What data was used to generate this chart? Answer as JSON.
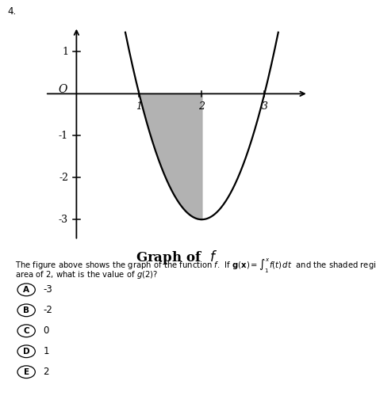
{
  "title": "Graph of  $f$",
  "question_number": "4.",
  "choices": [
    [
      "A",
      "-3"
    ],
    [
      "B",
      "-2"
    ],
    [
      "C",
      "0"
    ],
    [
      "D",
      "1"
    ],
    [
      "E",
      "2"
    ]
  ],
  "curve_color": "#000000",
  "shade_color": "#aaaaaa",
  "background_color": "#ffffff",
  "x_ticks": [
    1,
    2,
    3
  ],
  "y_ticks": [
    1,
    -1,
    -2,
    -3
  ],
  "origin_label": "O",
  "xlim": [
    -0.5,
    3.7
  ],
  "ylim": [
    -3.5,
    1.6
  ],
  "parabola_a": 3.0,
  "parabola_roots": [
    1.0,
    3.0
  ],
  "shade_x1": 1.0,
  "shade_x2": 2.0
}
